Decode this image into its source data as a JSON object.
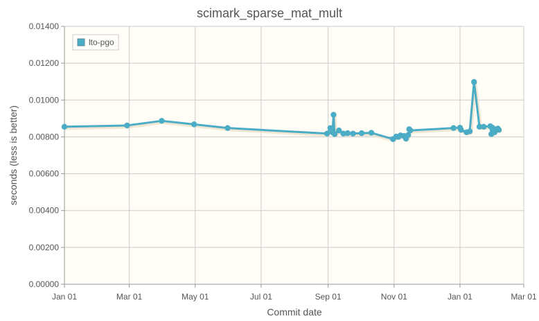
{
  "chart_data": {
    "type": "line",
    "title": "scimark_sparse_mat_mult",
    "xlabel": "Commit date",
    "ylabel": "seconds (less is better)",
    "x_ticks": [
      "Jan 01",
      "Mar 01",
      "May 01",
      "Jul 01",
      "Sep 01",
      "Nov 01",
      "Jan 01",
      "Mar 01"
    ],
    "y_ticks": [
      "0.00000",
      "0.00200",
      "0.00400",
      "0.00600",
      "0.00800",
      "0.01000",
      "0.01200",
      "0.01400"
    ],
    "xlim": [
      "Jan 01",
      "Mar 01"
    ],
    "ylim": [
      0,
      0.014
    ],
    "grid": true,
    "legend_position": "top-left",
    "colors": {
      "series": "#4bacc6",
      "shadow": "#e9dcc2",
      "plot_bg": "#fffdf6",
      "grid": "#cccccc",
      "axis": "#999999"
    },
    "series": [
      {
        "name": "lto-pgo",
        "points": [
          {
            "x": "Jan 01",
            "y": 0.00855
          },
          {
            "x": "Feb 28",
            "y": 0.00862
          },
          {
            "x": "Mar 31",
            "y": 0.00887
          },
          {
            "x": "Apr 30",
            "y": 0.00868
          },
          {
            "x": "May 31",
            "y": 0.00848
          },
          {
            "x": "Aug 31",
            "y": 0.00818
          },
          {
            "x": "Sep 03",
            "y": 0.00848
          },
          {
            "x": "Sep 05",
            "y": 0.00825
          },
          {
            "x": "Sep 06",
            "y": 0.0092
          },
          {
            "x": "Sep 07",
            "y": 0.00815
          },
          {
            "x": "Sep 11",
            "y": 0.00835
          },
          {
            "x": "Sep 15",
            "y": 0.00818
          },
          {
            "x": "Sep 19",
            "y": 0.0082
          },
          {
            "x": "Sep 24",
            "y": 0.00818
          },
          {
            "x": "Oct 02",
            "y": 0.0082
          },
          {
            "x": "Oct 11",
            "y": 0.00822
          },
          {
            "x": "Oct 31",
            "y": 0.00788
          },
          {
            "x": "Nov 03",
            "y": 0.00802
          },
          {
            "x": "Nov 05",
            "y": 0.008
          },
          {
            "x": "Nov 07",
            "y": 0.00808
          },
          {
            "x": "Nov 10",
            "y": 0.00805
          },
          {
            "x": "Nov 12",
            "y": 0.0079
          },
          {
            "x": "Nov 14",
            "y": 0.0081
          },
          {
            "x": "Nov 15",
            "y": 0.00842
          },
          {
            "x": "Nov 16",
            "y": 0.00835
          },
          {
            "x": "Dec 26",
            "y": 0.00848
          },
          {
            "x": "Jan 01",
            "y": 0.0085
          },
          {
            "x": "Jan 02",
            "y": 0.00838
          },
          {
            "x": "Jan 07",
            "y": 0.00825
          },
          {
            "x": "Jan 10",
            "y": 0.0083
          },
          {
            "x": "Jan 14",
            "y": 0.01098
          },
          {
            "x": "Jan 19",
            "y": 0.00855
          },
          {
            "x": "Jan 23",
            "y": 0.00855
          },
          {
            "x": "Jan 29",
            "y": 0.00858
          },
          {
            "x": "Jan 30",
            "y": 0.00815
          },
          {
            "x": "Jan 31",
            "y": 0.0085
          },
          {
            "x": "Feb 02",
            "y": 0.00825
          },
          {
            "x": "Feb 03",
            "y": 0.0084
          },
          {
            "x": "Feb 05",
            "y": 0.00845
          },
          {
            "x": "Feb 06",
            "y": 0.00838
          }
        ]
      }
    ]
  }
}
